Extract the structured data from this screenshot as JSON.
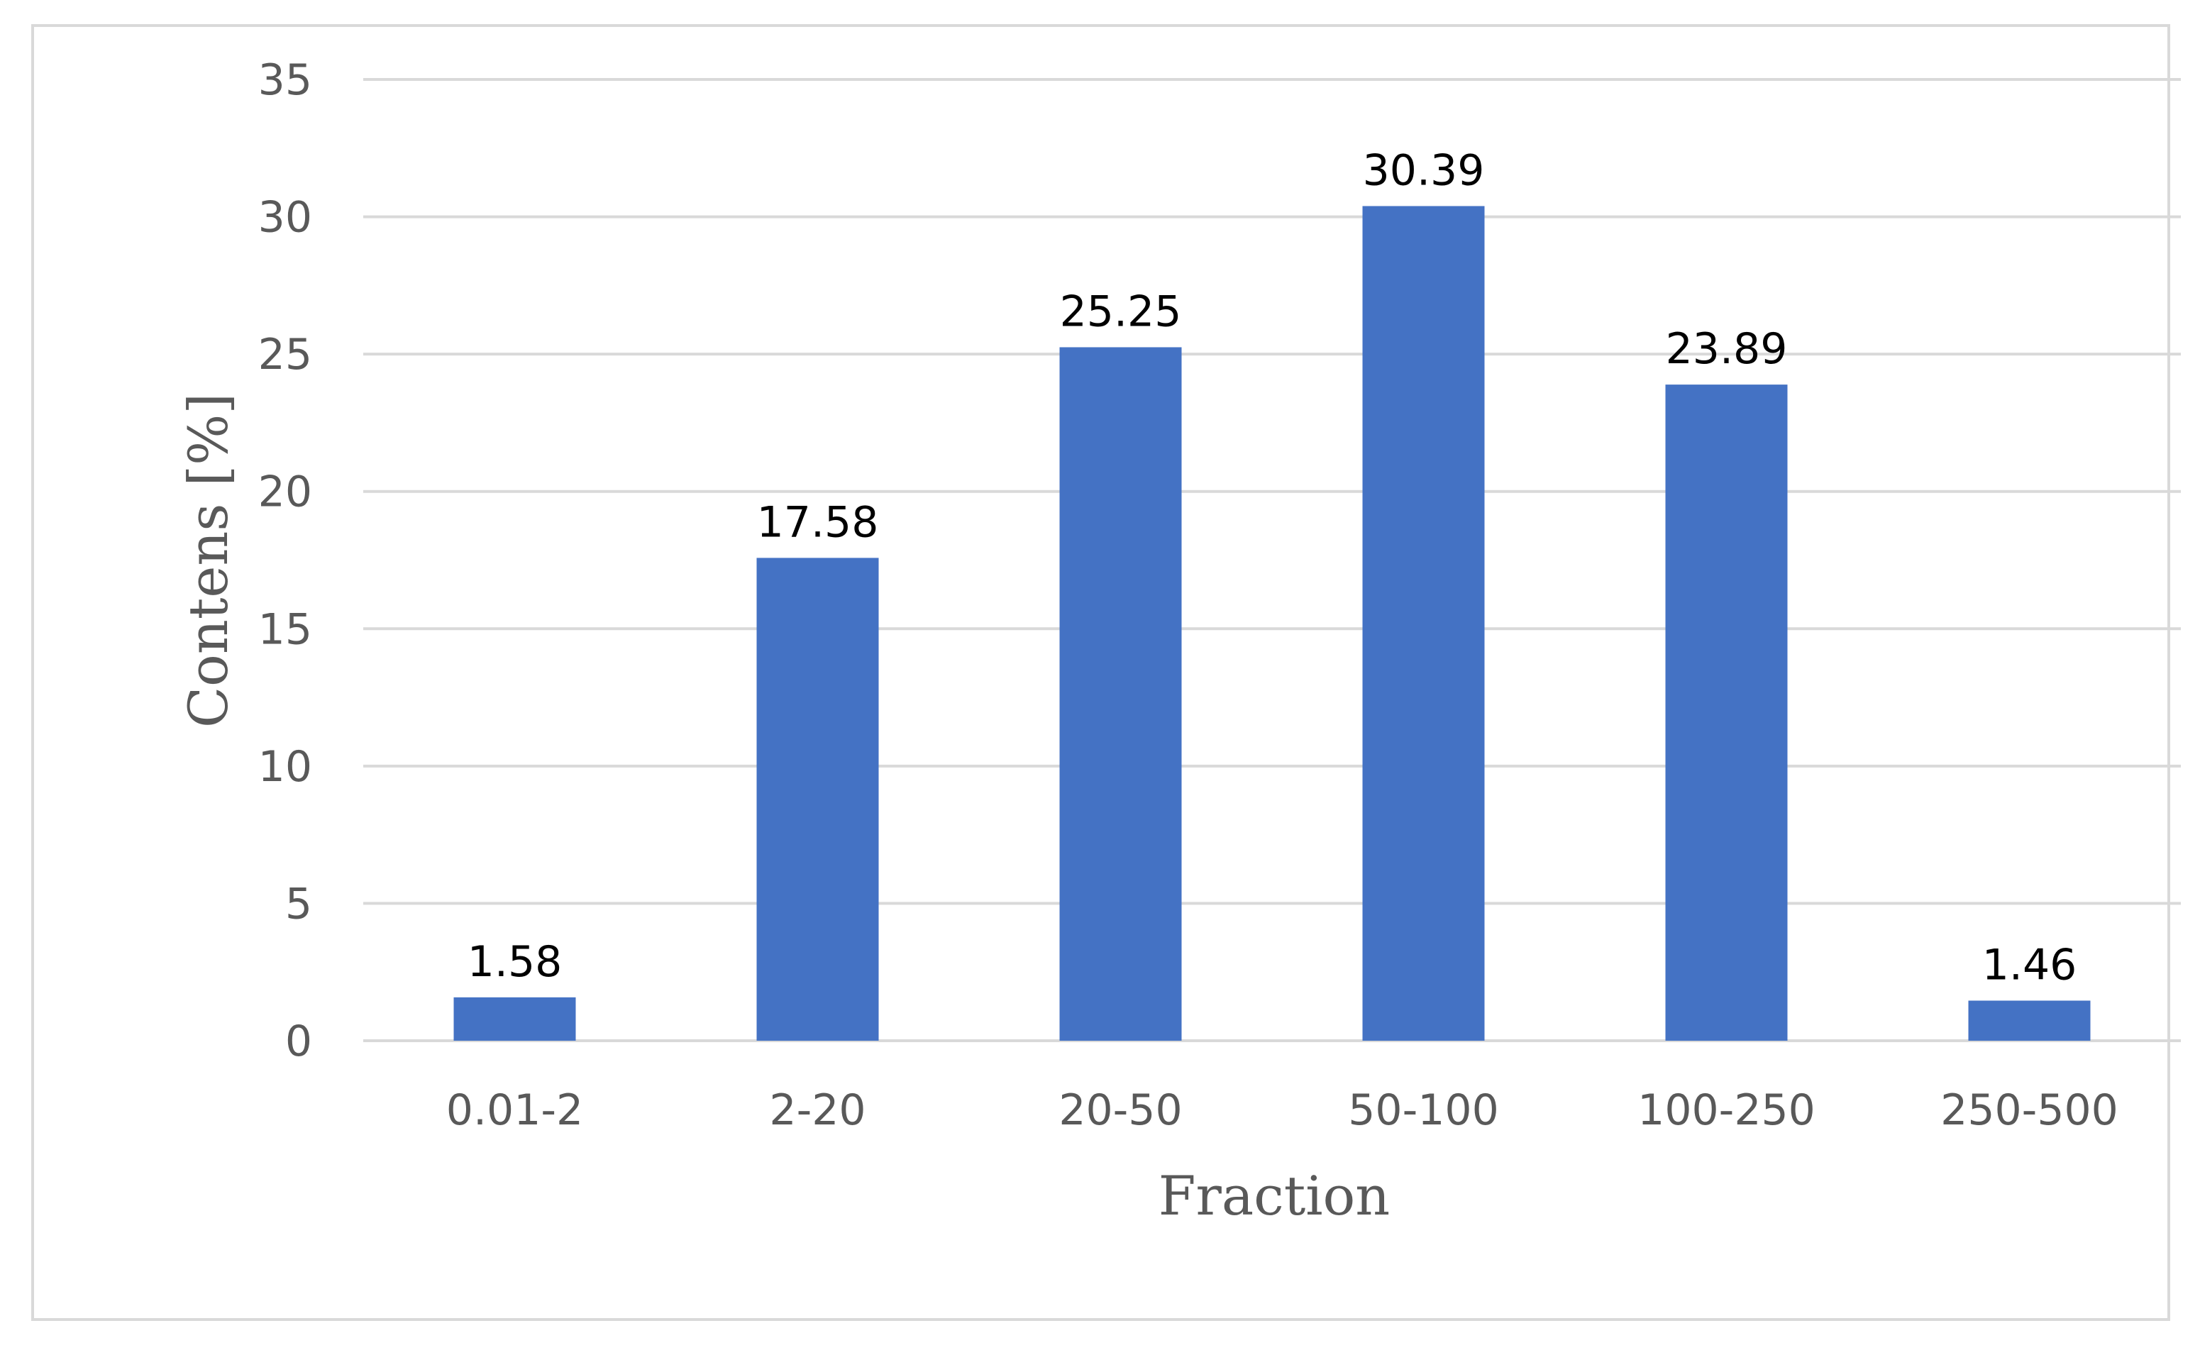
{
  "chart_data": {
    "type": "bar",
    "categories": [
      "0.01-2",
      "2-20",
      "20-50",
      "50-100",
      "100-250",
      "250-500"
    ],
    "values": [
      1.58,
      17.58,
      25.25,
      30.39,
      23.89,
      1.46
    ],
    "data_labels": [
      "1.58",
      "17.58",
      "25.25",
      "30.39",
      "23.89",
      "1.46"
    ],
    "xlabel": "Fraction",
    "ylabel": "Contens [%]",
    "ylim": [
      0,
      35
    ],
    "yticks": [
      0,
      5,
      10,
      15,
      20,
      25,
      30,
      35
    ],
    "grid": true,
    "legend": "none",
    "bar_color": "#4472C4",
    "grid_color": "#d9d9d9",
    "text_color": "#595959"
  }
}
